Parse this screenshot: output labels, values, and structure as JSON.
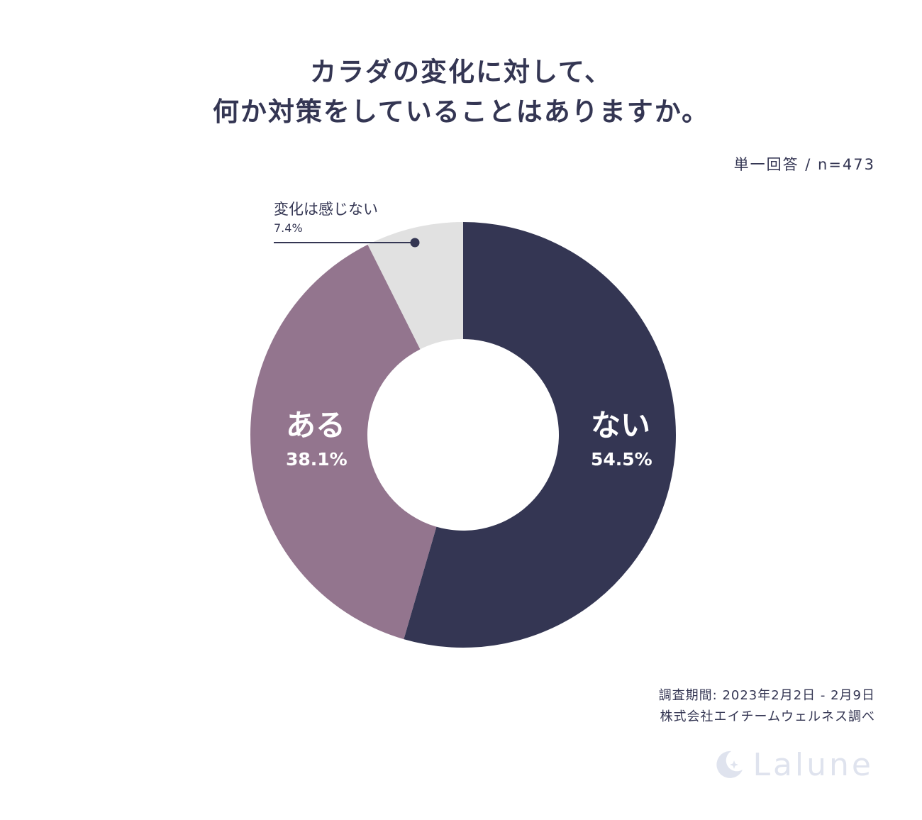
{
  "title_lines": [
    "カラダの変化に対して、",
    "何か対策をしていることはありますか。"
  ],
  "meta": "単一回答 / n=473",
  "footer": {
    "period": "調査期間: 2023年2月2日 - 2月9日",
    "source": "株式会社エイチームウェルネス調べ"
  },
  "brand": {
    "name": "Lalune",
    "icon": "moon-icon"
  },
  "chart_data": {
    "type": "pie",
    "title": "カラダの変化に対して、何か対策をしていることはありますか。",
    "slices": [
      {
        "label": "ない",
        "value": 54.5,
        "display": "54.5%",
        "color": "#343653",
        "label_color": "#ffffff"
      },
      {
        "label": "ある",
        "value": 38.1,
        "display": "38.1%",
        "color": "#93758e",
        "label_color": "#ffffff"
      },
      {
        "label": "変化は感じない",
        "value": 7.4,
        "display": "7.4%",
        "color": "#e1e1e1",
        "label_color": "#343653"
      }
    ],
    "unit": "%",
    "legend": "none",
    "donut": true
  }
}
